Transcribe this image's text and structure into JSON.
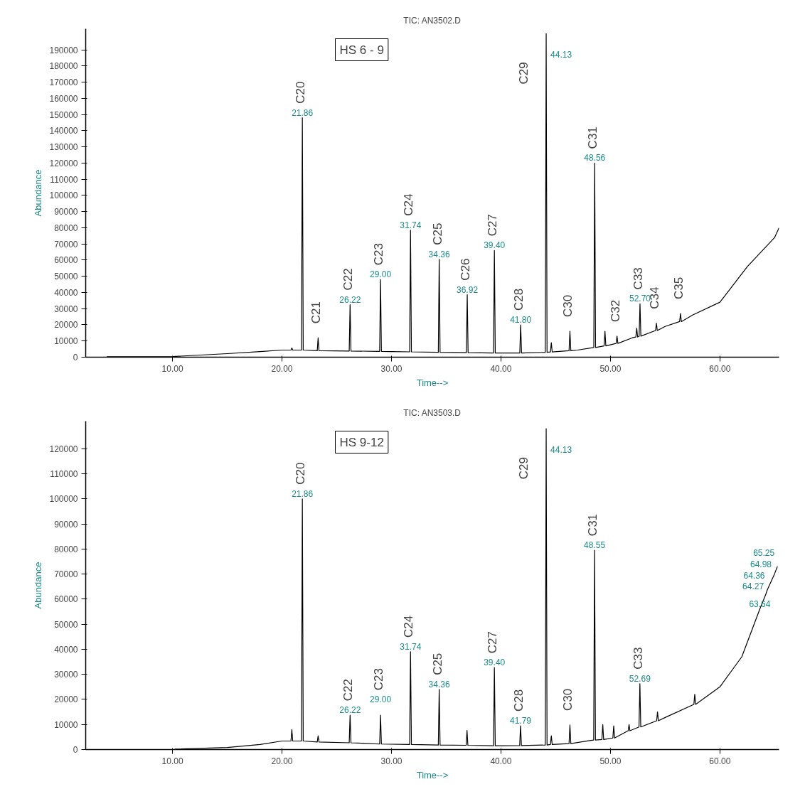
{
  "chart_data": [
    {
      "type": "line",
      "title": "TIC: AN3502.D",
      "xlabel": "Time-->",
      "ylabel": "Abundance",
      "xlim": [
        2.07,
        65.4
      ],
      "ylim": [
        0,
        203000
      ],
      "xticks": [
        {
          "value": 10,
          "label": "10.00"
        },
        {
          "value": 20,
          "label": "20.00"
        },
        {
          "value": 30,
          "label": "30.00"
        },
        {
          "value": 40,
          "label": "40.00"
        },
        {
          "value": 50,
          "label": "50.00"
        },
        {
          "value": 60,
          "label": "60.00"
        }
      ],
      "yticks": [
        0,
        10000,
        20000,
        30000,
        40000,
        50000,
        60000,
        70000,
        80000,
        90000,
        100000,
        110000,
        120000,
        130000,
        140000,
        150000,
        160000,
        170000,
        180000,
        190000
      ],
      "annotations": [
        "HS 6 - 9",
        {
          "text": "C20",
          "x": 21.86,
          "y": 148000
        },
        {
          "text": "C21",
          "x": 23.3,
          "y": 12000
        },
        {
          "text": "C22",
          "x": 26.22,
          "y": 32500
        },
        {
          "text": "C23",
          "x": 29.0,
          "y": 48000
        },
        {
          "text": "C24",
          "x": 31.74,
          "y": 78500
        },
        {
          "text": "C25",
          "x": 34.36,
          "y": 60500
        },
        {
          "text": "C26",
          "x": 36.92,
          "y": 38600
        },
        {
          "text": "C27",
          "x": 39.4,
          "y": 66000
        },
        {
          "text": "C28",
          "x": 41.8,
          "y": 20000
        },
        {
          "text": "C29",
          "x": 44.13,
          "y": 200000
        },
        {
          "text": "C30",
          "x": 46.3,
          "y": 16000
        },
        {
          "text": "C31",
          "x": 48.56,
          "y": 120000
        },
        {
          "text": "C32",
          "x": 50.6,
          "y": 13000
        },
        {
          "text": "C33",
          "x": 52.7,
          "y": 33000
        },
        {
          "text": "C34",
          "x": 54.2,
          "y": 21000
        },
        {
          "text": "C35",
          "x": 56.4,
          "y": 27000
        },
        {
          "text": "21.86",
          "x": 21.86,
          "y": 148000
        },
        {
          "text": "26.22",
          "x": 26.22,
          "y": 32500
        },
        {
          "text": "29.00",
          "x": 29.0,
          "y": 48000
        },
        {
          "text": "31.74",
          "x": 31.74,
          "y": 78500
        },
        {
          "text": "34.36",
          "x": 34.36,
          "y": 60500
        },
        {
          "text": "36.92",
          "x": 36.92,
          "y": 38600
        },
        {
          "text": "39.40",
          "x": 39.4,
          "y": 66000
        },
        {
          "text": "41.80",
          "x": 41.8,
          "y": 20000
        },
        {
          "text": "44.13",
          "x": 44.13,
          "y": 200000
        },
        {
          "text": "48.56",
          "x": 48.56,
          "y": 120000
        },
        {
          "text": "52.70",
          "x": 52.7,
          "y": 33000
        }
      ],
      "series": [
        {
          "color": "#000000",
          "x": [
            4,
            10,
            15,
            18,
            20,
            20.82,
            20.9,
            20.98,
            21.78,
            21.86,
            21.94,
            23.22,
            23.3,
            23.38,
            26.14,
            26.22,
            26.3,
            28.92,
            29.0,
            29.08,
            30,
            31.66,
            31.74,
            31.82,
            34.28,
            34.36,
            34.44,
            36.84,
            36.92,
            37.0,
            39.32,
            39.4,
            39.48,
            41.72,
            41.8,
            41.88,
            44.05,
            44.13,
            44.21,
            44.52,
            44.6,
            44.68,
            46.22,
            46.3,
            46.38,
            47,
            48.48,
            48.56,
            48.64,
            49.42,
            49.5,
            49.58,
            50.52,
            50.6,
            50.68,
            52,
            52.32,
            52.4,
            52.48,
            52.62,
            52.7,
            52.78,
            54.12,
            54.2,
            54.28,
            55,
            56.32,
            56.4,
            56.48,
            57.5,
            60,
            62.5,
            65,
            65.4
          ],
          "values": [
            300,
            400,
            2200,
            3500,
            4400,
            4400,
            5700,
            4400,
            4400,
            148000,
            4400,
            4000,
            12000,
            4000,
            3800,
            32500,
            3800,
            3600,
            48000,
            3600,
            3500,
            3300,
            78500,
            3300,
            3000,
            60500,
            3000,
            2800,
            38600,
            2800,
            2600,
            66000,
            2600,
            2600,
            20000,
            2600,
            3000,
            200000,
            3000,
            3200,
            9000,
            3200,
            4000,
            16000,
            4000,
            4400,
            6000,
            120000,
            6000,
            7000,
            16000,
            7000,
            8500,
            13000,
            8500,
            12000,
            12500,
            18000,
            12500,
            13000,
            33000,
            13000,
            16500,
            21000,
            16500,
            19000,
            22000,
            27000,
            22000,
            26000,
            34000,
            56000,
            74000,
            80000
          ]
        }
      ]
    },
    {
      "type": "line",
      "title": "TIC: AN3503.D",
      "xlabel": "Time-->",
      "ylabel": "Abundance",
      "xlim": [
        2.07,
        65.4
      ],
      "ylim": [
        0,
        131000
      ],
      "xticks": [
        {
          "value": 10,
          "label": "10.00"
        },
        {
          "value": 20,
          "label": "20.00"
        },
        {
          "value": 30,
          "label": "30.00"
        },
        {
          "value": 40,
          "label": "40.00"
        },
        {
          "value": 50,
          "label": "50.00"
        },
        {
          "value": 60,
          "label": "60.00"
        }
      ],
      "yticks": [
        0,
        10000,
        20000,
        30000,
        40000,
        50000,
        60000,
        70000,
        80000,
        90000,
        100000,
        110000,
        120000
      ],
      "annotations": [
        "HS 9-12",
        {
          "text": "C20",
          "x": 21.86,
          "y": 100000
        },
        {
          "text": "C22",
          "x": 26.22,
          "y": 13700
        },
        {
          "text": "C23",
          "x": 29.0,
          "y": 13700
        },
        {
          "text": "C24",
          "x": 31.74,
          "y": 39000
        },
        {
          "text": "C25",
          "x": 34.36,
          "y": 24000
        },
        {
          "text": "C27",
          "x": 39.4,
          "y": 32700
        },
        {
          "text": "C28",
          "x": 41.79,
          "y": 9500
        },
        {
          "text": "C29",
          "x": 44.13,
          "y": 128000
        },
        {
          "text": "C30",
          "x": 46.3,
          "y": 9800
        },
        {
          "text": "C31",
          "x": 48.55,
          "y": 79500
        },
        {
          "text": "C33",
          "x": 52.69,
          "y": 26300
        },
        {
          "text": "21.86",
          "x": 21.86,
          "y": 100000
        },
        {
          "text": "26.22",
          "x": 26.22,
          "y": 13700
        },
        {
          "text": "29.00",
          "x": 29.0,
          "y": 13700
        },
        {
          "text": "31.74",
          "x": 31.74,
          "y": 39000
        },
        {
          "text": "34.36",
          "x": 34.36,
          "y": 24000
        },
        {
          "text": "39.40",
          "x": 39.4,
          "y": 32700
        },
        {
          "text": "41.79",
          "x": 41.79,
          "y": 9500
        },
        {
          "text": "44.13",
          "x": 44.13,
          "y": 128000
        },
        {
          "text": "48.55",
          "x": 48.55,
          "y": 79500
        },
        {
          "text": "52.69",
          "x": 52.69,
          "y": 26300
        },
        {
          "text": "63.64",
          "x": 63.64,
          "y": 56000
        },
        {
          "text": "64.27",
          "x": 64.27,
          "y": 63000
        },
        {
          "text": "64.36",
          "x": 64.36,
          "y": 64000
        },
        {
          "text": "64.98",
          "x": 64.98,
          "y": 70000
        },
        {
          "text": "65.25",
          "x": 65.25,
          "y": 73000
        }
      ],
      "series": [
        {
          "color": "#000000",
          "x": [
            10.2,
            15,
            18,
            20,
            20.82,
            20.9,
            20.98,
            21.78,
            21.86,
            21.94,
            23.22,
            23.3,
            23.38,
            26.14,
            26.22,
            26.3,
            28.92,
            29.0,
            29.08,
            31.66,
            31.74,
            31.82,
            34.28,
            34.36,
            34.44,
            36.82,
            36.9,
            36.98,
            39.32,
            39.4,
            39.48,
            41.71,
            41.79,
            41.87,
            44.05,
            44.13,
            44.21,
            44.52,
            44.6,
            44.68,
            46.22,
            46.3,
            46.38,
            48,
            48.47,
            48.55,
            48.63,
            49.22,
            49.3,
            49.38,
            50.22,
            50.3,
            50.38,
            51.62,
            51.7,
            51.78,
            52.61,
            52.69,
            52.77,
            54.22,
            54.3,
            54.38,
            55,
            57.62,
            57.7,
            57.78,
            60,
            62,
            63.64,
            64.2,
            64.27,
            64.36,
            64.98,
            65.25
          ],
          "values": [
            200,
            800,
            2000,
            3400,
            3400,
            8000,
            3400,
            3400,
            100000,
            3400,
            3000,
            5500,
            3000,
            2700,
            13700,
            2700,
            2200,
            13700,
            2200,
            2000,
            39000,
            2000,
            1800,
            24000,
            1800,
            1700,
            7600,
            1700,
            1500,
            32700,
            1500,
            1600,
            9500,
            1600,
            1800,
            128000,
            1800,
            2000,
            5500,
            2000,
            2400,
            9800,
            2400,
            3500,
            3800,
            79500,
            3800,
            4000,
            10000,
            4000,
            4600,
            9500,
            4600,
            7500,
            10000,
            7500,
            9000,
            26300,
            9000,
            11500,
            15000,
            11500,
            12800,
            18000,
            22000,
            18000,
            25000,
            37000,
            56000,
            62000,
            63000,
            64000,
            70000,
            73000
          ]
        }
      ]
    }
  ]
}
